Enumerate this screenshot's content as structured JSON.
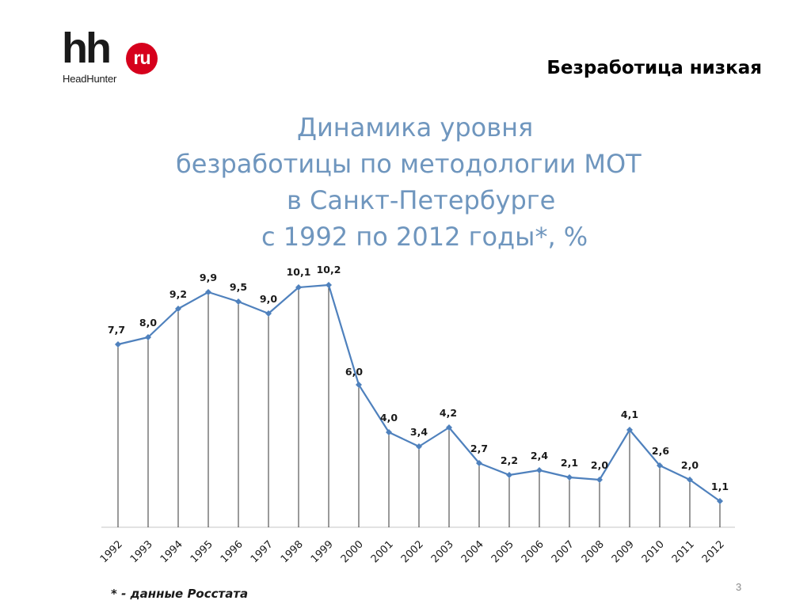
{
  "logo": {
    "main": "hh",
    "badge": "ru",
    "sub": "HeadHunter"
  },
  "header": {
    "title": "Безработица низкая"
  },
  "chart_data": {
    "type": "line",
    "title_lines": [
      "Динамика уровня",
      "безработицы по методологии МОТ",
      "в Санкт-Петербурге",
      "с 1992 по 2012 годы*, %"
    ],
    "categories": [
      "1992",
      "1993",
      "1994",
      "1995",
      "1996",
      "1997",
      "1998",
      "1999",
      "2000",
      "2001",
      "2002",
      "2003",
      "2004",
      "2005",
      "2006",
      "2007",
      "2008",
      "2009",
      "2010",
      "2011",
      "2012"
    ],
    "values": [
      7.7,
      8.0,
      9.2,
      9.9,
      9.5,
      9.0,
      10.1,
      10.2,
      6.0,
      4.0,
      3.4,
      4.2,
      2.7,
      2.2,
      2.4,
      2.1,
      2.0,
      4.1,
      2.6,
      2.0,
      1.1
    ],
    "labels": [
      "7,7",
      "8,0",
      "9,2",
      "9,9",
      "9,5",
      "9,0",
      "10,1",
      "10,2",
      "6,0",
      "4,0",
      "3,4",
      "4,2",
      "2,7",
      "2,2",
      "2,4",
      "2,1",
      "2,0",
      "4,1",
      "2,6",
      "2,0",
      "1,1"
    ],
    "ylim": [
      0,
      11.2
    ],
    "grid": false,
    "drop_lines": true,
    "line_color": "#4f81bd"
  },
  "footnote": "* - данные Росстата",
  "page_number": "3"
}
